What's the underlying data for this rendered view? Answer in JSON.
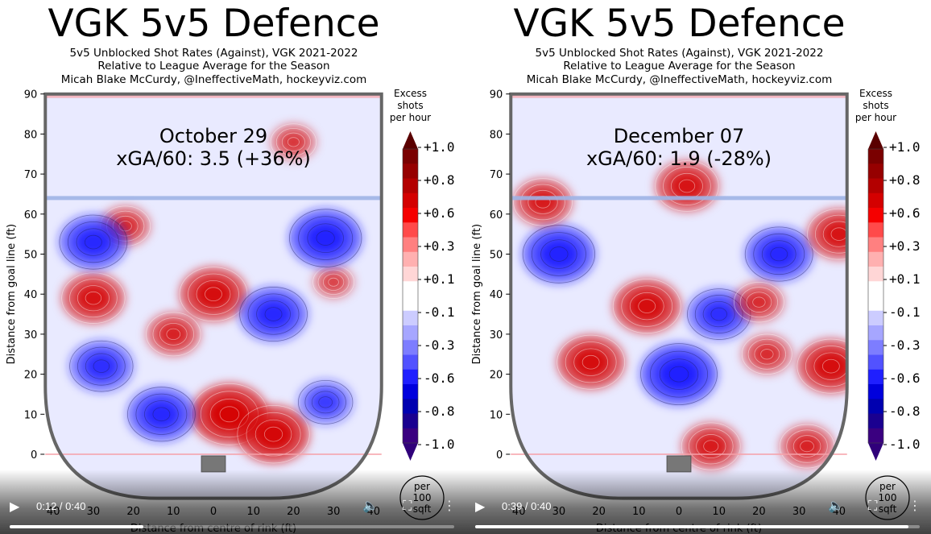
{
  "panels": [
    {
      "title": "VGK 5v5 Defence",
      "subtitle_lines": [
        "5v5 Unblocked Shot Rates (Against), VGK 2021-2022",
        "Relative to League Average for the Season",
        "Micah Blake McCurdy, @IneffectiveMath, hockeyviz.com"
      ],
      "annotation_date": "October 29",
      "annotation_xga": "xGA/60: 3.5 (+36%)",
      "video": {
        "time_text": "0:12 / 0:40",
        "progress": 0.3
      }
    },
    {
      "title": "VGK 5v5 Defence",
      "subtitle_lines": [
        "5v5 Unblocked Shot Rates (Against), VGK 2021-2022",
        "Relative to League Average for the Season",
        "Micah Blake McCurdy, @IneffectiveMath, hockeyviz.com"
      ],
      "annotation_date": "December 07",
      "annotation_xga": "xGA/60: 1.9 (-28%)",
      "video": {
        "time_text": "0:39 / 0:40",
        "progress": 0.975
      }
    }
  ],
  "colorbar": {
    "title_lines": [
      "Excess",
      "shots",
      "per hour"
    ],
    "tick_labels": [
      "+1.0",
      "+0.8",
      "+0.6",
      "+0.3",
      "+0.1",
      "-0.1",
      "-0.3",
      "-0.6",
      "-0.8",
      "-1.0"
    ],
    "unit_lines": [
      "per",
      "100",
      "sqft"
    ],
    "colors_top_to_bottom": [
      "#7a0000",
      "#960000",
      "#b30000",
      "#d40000",
      "#f50000",
      "#ff4a4a",
      "#ff8080",
      "#ffb0b0",
      "#ffd6d6",
      "#ffffff",
      "#ffffff",
      "#ccccff",
      "#a6a6ff",
      "#7d7dff",
      "#5252ff",
      "#1f1fff",
      "#0000dd",
      "#0000b0",
      "#1a0090",
      "#3a0080"
    ]
  },
  "colors": {
    "positive": "#d40000",
    "negative": "#1f1fff",
    "rink_outline": "#666666",
    "blue_line": "#9fb4e6",
    "red_line": "#f4b6c0"
  },
  "icons": [
    "play-icon",
    "volume-icon",
    "fullscreen-icon",
    "more-icon"
  ],
  "chart_data": [
    {
      "type": "heatmap",
      "title": "VGK 5v5 Defence",
      "xlabel": "Distance from centre of rink (ft)",
      "ylabel": "Distance from goal line (ft)",
      "xlim": [
        -42,
        42
      ],
      "ylim": [
        -10,
        90
      ],
      "x_ticks": [
        40,
        30,
        20,
        10,
        0,
        10,
        20,
        30,
        40
      ],
      "y_ticks": [
        0,
        10,
        20,
        30,
        40,
        50,
        60,
        70,
        80,
        90
      ],
      "colorbar_range": [
        -1.0,
        1.0
      ],
      "hotspots": [
        {
          "x": 4,
          "y": 10,
          "value": 1.0
        },
        {
          "x": 15,
          "y": 5,
          "value": 0.9
        },
        {
          "x": 0,
          "y": 40,
          "value": 0.8
        },
        {
          "x": -30,
          "y": 39,
          "value": 0.7
        },
        {
          "x": -10,
          "y": 30,
          "value": 0.5
        },
        {
          "x": 20,
          "y": 78,
          "value": 0.3
        },
        {
          "x": -22,
          "y": 57,
          "value": 0.4
        },
        {
          "x": 30,
          "y": 43,
          "value": 0.2
        },
        {
          "x": -30,
          "y": 53,
          "value": -0.8
        },
        {
          "x": 28,
          "y": 54,
          "value": -0.9
        },
        {
          "x": 15,
          "y": 35,
          "value": -0.8
        },
        {
          "x": -28,
          "y": 22,
          "value": -0.7
        },
        {
          "x": -13,
          "y": 10,
          "value": -0.8
        },
        {
          "x": 28,
          "y": 13,
          "value": -0.5
        }
      ]
    },
    {
      "type": "heatmap",
      "title": "VGK 5v5 Defence",
      "xlabel": "Distance from centre of rink (ft)",
      "ylabel": "Distance from goal line (ft)",
      "xlim": [
        -42,
        42
      ],
      "ylim": [
        -10,
        90
      ],
      "x_ticks": [
        40,
        30,
        20,
        10,
        0,
        10,
        20,
        30,
        40
      ],
      "y_ticks": [
        0,
        10,
        20,
        30,
        40,
        50,
        60,
        70,
        80,
        90
      ],
      "colorbar_range": [
        -1.0,
        1.0
      ],
      "hotspots": [
        {
          "x": 0,
          "y": 20,
          "value": -1.0
        },
        {
          "x": -30,
          "y": 50,
          "value": -0.9
        },
        {
          "x": 25,
          "y": 50,
          "value": -0.8
        },
        {
          "x": 10,
          "y": 35,
          "value": -0.7
        },
        {
          "x": -8,
          "y": 37,
          "value": 0.8
        },
        {
          "x": -22,
          "y": 23,
          "value": 0.8
        },
        {
          "x": 2,
          "y": 67,
          "value": 0.7
        },
        {
          "x": -34,
          "y": 63,
          "value": 0.6
        },
        {
          "x": 38,
          "y": 22,
          "value": 0.8
        },
        {
          "x": 40,
          "y": 55,
          "value": 0.7
        },
        {
          "x": 8,
          "y": 2,
          "value": 0.6
        },
        {
          "x": 32,
          "y": 2,
          "value": 0.5
        },
        {
          "x": 20,
          "y": 38,
          "value": 0.4
        },
        {
          "x": 22,
          "y": 25,
          "value": 0.4
        }
      ]
    }
  ]
}
